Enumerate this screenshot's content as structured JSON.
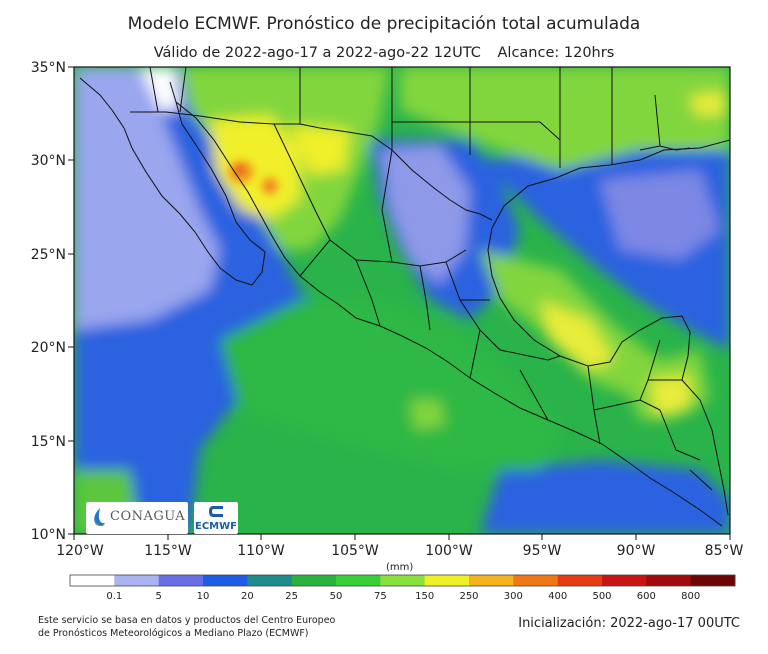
{
  "title": "Modelo ECMWF. Pronóstico de precipitación total acumulada",
  "subtitle": {
    "valid": "Válido de 2022-ago-17 a 2022-ago-22 12UTC",
    "range": "Alcance: 120hrs"
  },
  "map": {
    "lat_ticks": [
      "35°N",
      "30°N",
      "25°N",
      "20°N",
      "15°N",
      "10°N"
    ],
    "lon_ticks": [
      "120°W",
      "115°W",
      "110°W",
      "105°W",
      "100°W",
      "95°W",
      "90°W",
      "85°W"
    ],
    "lat_range": [
      10,
      35
    ],
    "lon_range": [
      -120,
      -85
    ]
  },
  "colorbar": {
    "unit": "(mm)",
    "labels": [
      "0.1",
      "5",
      "10",
      "20",
      "25",
      "50",
      "75",
      "150",
      "250",
      "300",
      "400",
      "500",
      "600",
      "800"
    ],
    "colors": [
      "#ffffff",
      "#aab4f0",
      "#6a6ee6",
      "#1e5ce6",
      "#1e8c8c",
      "#28b43c",
      "#38cf38",
      "#8ce03c",
      "#f0f028",
      "#f5b41e",
      "#f07814",
      "#e63c14",
      "#c81414",
      "#a00a0a",
      "#6e0505"
    ]
  },
  "logos": {
    "conagua": "CONAGUA",
    "ecmwf": "ECMWF"
  },
  "footnote": {
    "line1": "Este servicio se basa en datos y productos del Centro Europeo",
    "line2": "de Pronósticos Meteorológicos a Mediano Plazo (ECMWF)"
  },
  "initialization": "Inicialización: 2022-ago-17 00UTC"
}
